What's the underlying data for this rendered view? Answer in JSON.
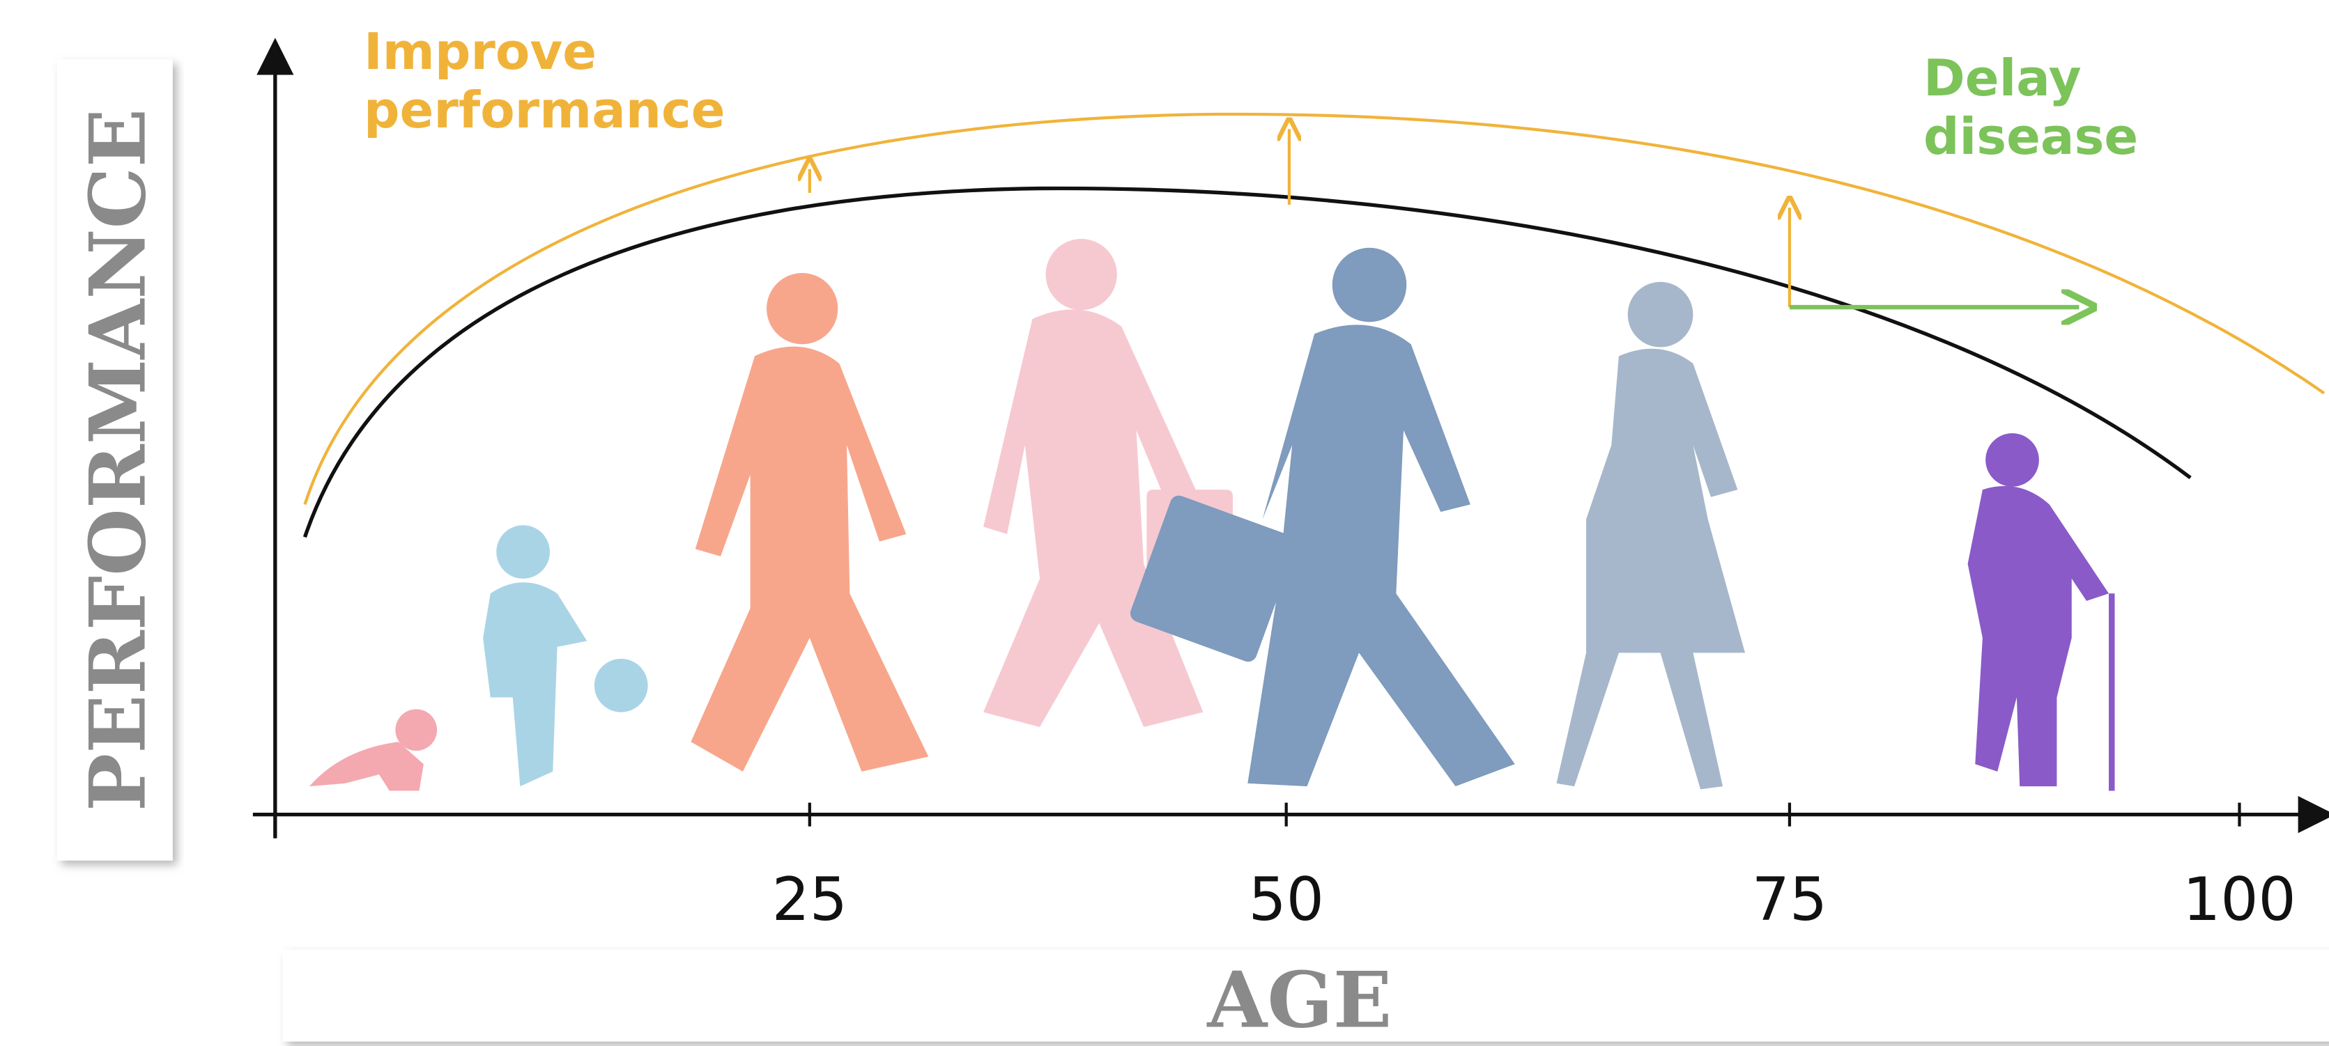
{
  "y_axis_title": "PERFORMANCE",
  "x_axis_title": "AGE",
  "annotations": [
    "Improve performance",
    "Delay disease"
  ],
  "xticks": [
    25,
    50,
    75,
    100
  ]
}
